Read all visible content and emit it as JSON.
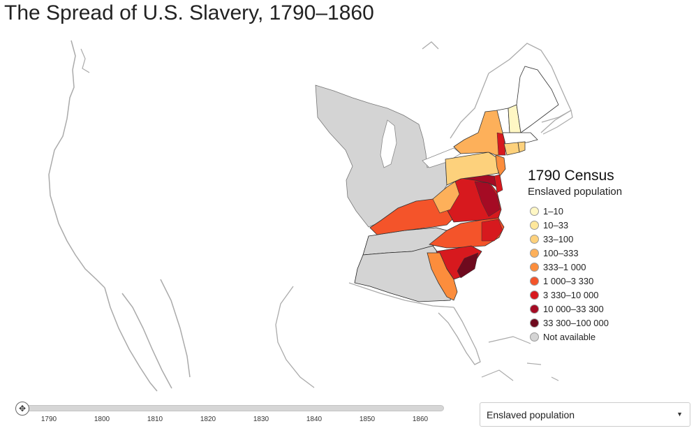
{
  "title": "The Spread of U.S. Slavery, 1790–1860",
  "legend": {
    "title": "1790 Census",
    "subtitle": "Enslaved population",
    "items": [
      {
        "label": "1–10",
        "color": "#fff7c4"
      },
      {
        "label": "10–33",
        "color": "#fee79b"
      },
      {
        "label": "33–100",
        "color": "#fdd17c"
      },
      {
        "label": "100–333",
        "color": "#fdb05a"
      },
      {
        "label": "333–1 000",
        "color": "#fc8d3c"
      },
      {
        "label": "1 000–3 330",
        "color": "#f4542a"
      },
      {
        "label": "3 330–10 000",
        "color": "#d7191e"
      },
      {
        "label": "10 000–33 300",
        "color": "#a50b24"
      },
      {
        "label": "33 300–100 000",
        "color": "#6e0a1e"
      },
      {
        "label": "Not available",
        "color": "#d4d4d4"
      }
    ]
  },
  "timeline": {
    "years": [
      "1790",
      "1800",
      "1810",
      "1820",
      "1830",
      "1840",
      "1850",
      "1860"
    ],
    "current_year": "1790"
  },
  "dropdown": {
    "selected": "Enslaved population"
  },
  "colors": {
    "not_available": "#d4d4d4",
    "outline": "#aaaaaa",
    "border": "#222222"
  }
}
